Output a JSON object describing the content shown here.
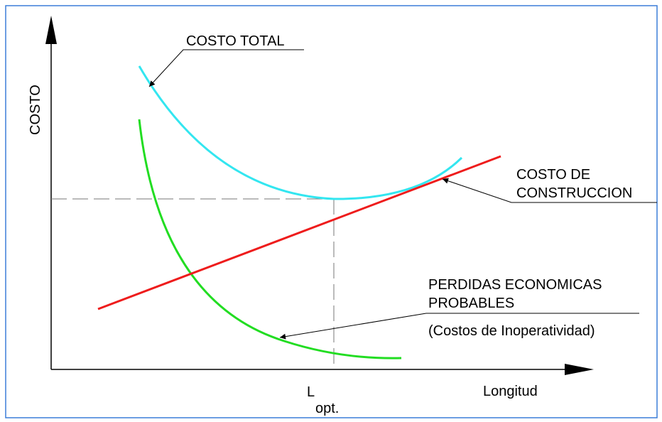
{
  "y_axis_label": "COSTO",
  "x_axis_label": "Longitud",
  "optimum": {
    "symbol": "L",
    "subscript": "opt."
  },
  "curves": [
    {
      "label_lines": [
        "COSTO TOTAL"
      ]
    },
    {
      "label_lines": [
        "COSTO DE",
        "CONSTRUCCION"
      ]
    },
    {
      "label_lines": [
        "PERDIDAS ECONOMICAS",
        "PROBABLES",
        "(Costos de Inoperatividad)"
      ]
    }
  ]
}
